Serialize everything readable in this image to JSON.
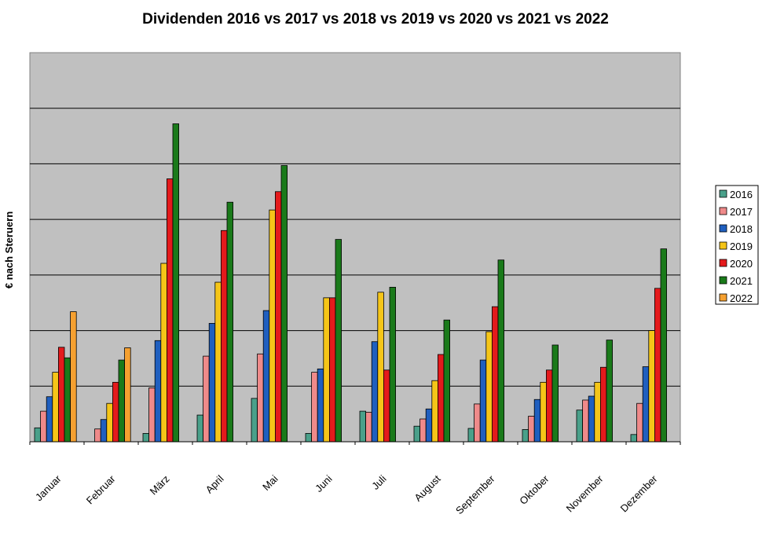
{
  "chart_data": {
    "type": "bar",
    "title": "Dividenden 2016 vs 2017 vs 2018 vs 2019 vs 2020 vs 2021 vs 2022",
    "xlabel": "",
    "ylabel": "€ nach Steruern",
    "ylim": [
      0,
      7
    ],
    "grid": true,
    "legend_position": "right",
    "categories": [
      "Januar",
      "Februar",
      "März",
      "April",
      "Mai",
      "Juni",
      "Juli",
      "August",
      "September",
      "Oktober",
      "November",
      "Dezember"
    ],
    "series": [
      {
        "name": "2016",
        "color": "#4aa08a",
        "values": [
          0.25,
          0,
          0.15,
          0.48,
          0.78,
          0.15,
          0.55,
          0.28,
          0.24,
          0.22,
          0.57,
          0.13
        ]
      },
      {
        "name": "2017",
        "color": "#ef8a8a",
        "values": [
          0.55,
          0.23,
          0.97,
          1.54,
          1.58,
          1.25,
          0.53,
          0.41,
          0.68,
          0.46,
          0.75,
          0.69
        ]
      },
      {
        "name": "2018",
        "color": "#1f5fbf",
        "values": [
          0.81,
          0.4,
          1.82,
          2.13,
          2.36,
          1.31,
          1.8,
          0.59,
          1.47,
          0.76,
          0.82,
          1.35
        ]
      },
      {
        "name": "2019",
        "color": "#f5c518",
        "values": [
          1.25,
          0.69,
          3.21,
          2.87,
          4.17,
          2.59,
          2.69,
          1.1,
          1.98,
          1.07,
          1.07,
          2.0
        ]
      },
      {
        "name": "2020",
        "color": "#e41a1c",
        "values": [
          1.7,
          1.07,
          4.73,
          3.8,
          4.5,
          2.59,
          1.29,
          1.57,
          2.43,
          1.29,
          1.34,
          2.76
        ]
      },
      {
        "name": "2021",
        "color": "#1a7a1a",
        "values": [
          1.51,
          1.47,
          5.72,
          4.31,
          4.97,
          3.64,
          2.78,
          2.19,
          3.27,
          1.74,
          1.83,
          3.47
        ]
      },
      {
        "name": "2022",
        "color": "#f5a030",
        "values": [
          2.34,
          1.69,
          null,
          null,
          null,
          null,
          null,
          null,
          null,
          null,
          null,
          null
        ]
      }
    ]
  }
}
